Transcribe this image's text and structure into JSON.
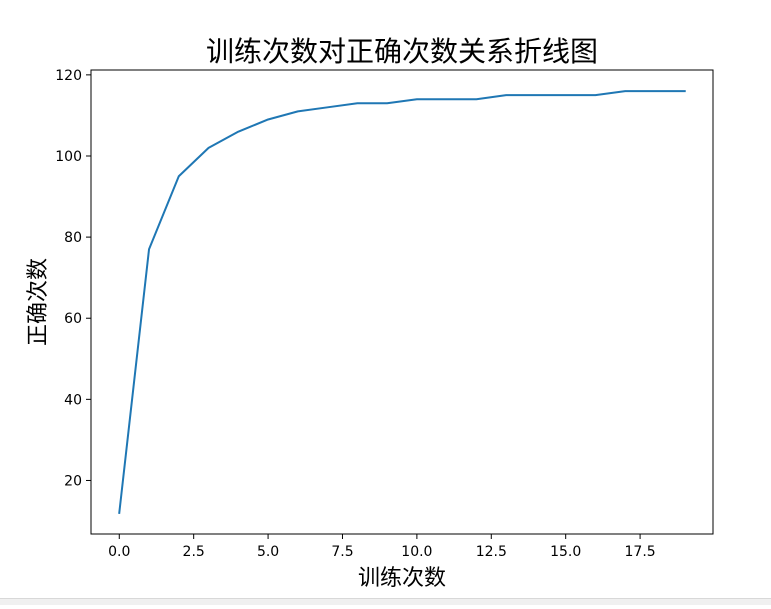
{
  "chart_data": {
    "type": "line",
    "title": "训练次数对正确次数关系折线图",
    "xlabel": "训练次数",
    "ylabel": "正确次数",
    "xlim": [
      -0.95,
      19.95
    ],
    "ylim": [
      6.8,
      121.2
    ],
    "xticks": [
      0.0,
      2.5,
      5.0,
      7.5,
      10.0,
      12.5,
      15.0,
      17.5
    ],
    "xtick_labels": [
      "0.0",
      "2.5",
      "5.0",
      "7.5",
      "10.0",
      "12.5",
      "15.0",
      "17.5"
    ],
    "yticks": [
      20,
      40,
      60,
      80,
      100,
      120
    ],
    "ytick_labels": [
      "20",
      "40",
      "60",
      "80",
      "100",
      "120"
    ],
    "grid": false,
    "series": [
      {
        "color": "#1f77b4",
        "x": [
          0,
          1,
          2,
          3,
          4,
          5,
          6,
          7,
          8,
          9,
          10,
          11,
          12,
          13,
          14,
          15,
          16,
          17,
          18,
          19
        ],
        "y": [
          12,
          77,
          95,
          102,
          106,
          109,
          111,
          112,
          113,
          113,
          114,
          114,
          114,
          115,
          115,
          115,
          115,
          116,
          116,
          116
        ]
      }
    ]
  }
}
